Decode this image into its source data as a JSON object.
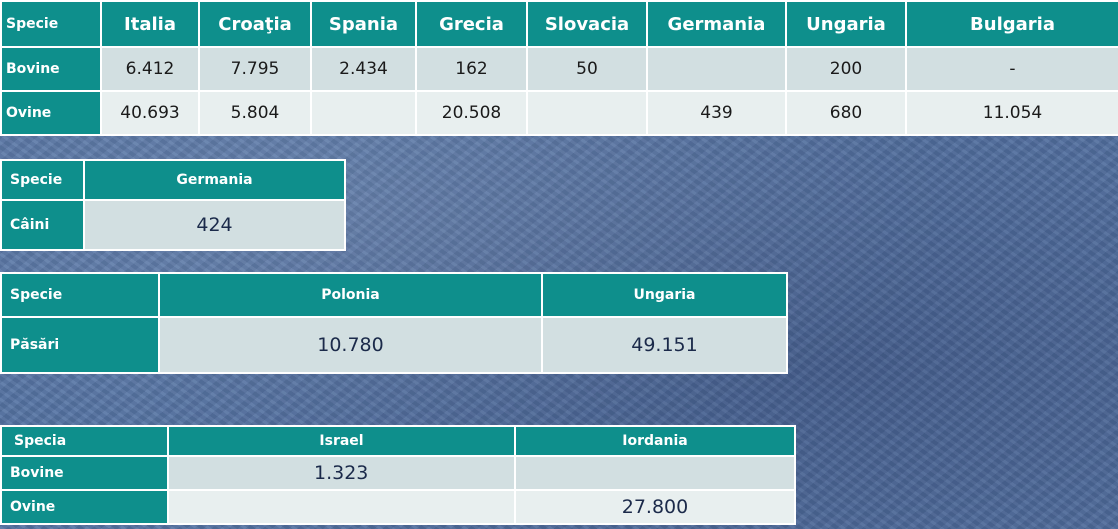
{
  "table1": {
    "headers": [
      "Specie",
      "Italia",
      "Croaţia",
      "Spania",
      "Grecia",
      "Slovacia",
      "Germania",
      "Ungaria",
      "Bulgaria"
    ],
    "rows": [
      {
        "label": "Bovine",
        "values": [
          "6.412",
          "7.795",
          "2.434",
          "162",
          "50",
          "",
          "200",
          "-"
        ]
      },
      {
        "label": "Ovine",
        "values": [
          "40.693",
          "5.804",
          "",
          "20.508",
          "",
          "439",
          "680",
          "11.054"
        ]
      }
    ]
  },
  "table2": {
    "headers": [
      "Specie",
      "Germania"
    ],
    "rows": [
      {
        "label": "Câini",
        "values": [
          "424"
        ]
      }
    ]
  },
  "table3": {
    "headers": [
      "Specie",
      "Polonia",
      "Ungaria"
    ],
    "rows": [
      {
        "label": "Păsări",
        "values": [
          "10.780",
          "49.151"
        ]
      }
    ]
  },
  "table4": {
    "headers": [
      "Specia",
      "Israel",
      "Iordania"
    ],
    "rows": [
      {
        "label": "Bovine",
        "values": [
          "1.323",
          ""
        ]
      },
      {
        "label": "Ovine",
        "values": [
          "",
          "27.800"
        ]
      }
    ]
  }
}
